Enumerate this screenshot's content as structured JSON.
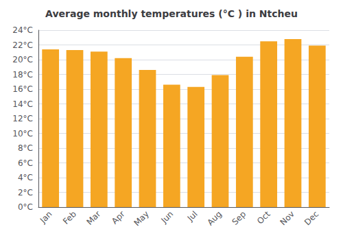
{
  "chart_data": {
    "type": "bar",
    "title": "Average monthly temperatures (°C ) in Ntcheu",
    "categories": [
      "Jan",
      "Feb",
      "Mar",
      "Apr",
      "May",
      "Jun",
      "Jul",
      "Aug",
      "Sep",
      "Oct",
      "Nov",
      "Dec"
    ],
    "values": [
      21.4,
      21.3,
      21.1,
      20.2,
      18.6,
      16.6,
      16.3,
      17.9,
      20.4,
      22.5,
      22.8,
      21.9
    ],
    "color": "#F5A623",
    "ylim": [
      0,
      24
    ],
    "yticks": [
      {
        "value": 0,
        "label": "0°C"
      },
      {
        "value": 2,
        "label": "2°C"
      },
      {
        "value": 4,
        "label": "4°C"
      },
      {
        "value": 6,
        "label": "6°C"
      },
      {
        "value": 8,
        "label": "8°C"
      },
      {
        "value": 10,
        "label": "10°C"
      },
      {
        "value": 12,
        "label": "12°C"
      },
      {
        "value": 14,
        "label": "14°C"
      },
      {
        "value": 16,
        "label": "16°C"
      },
      {
        "value": 18,
        "label": "18°C"
      },
      {
        "value": 20,
        "label": "20°C"
      },
      {
        "value": 22,
        "label": "22°C"
      },
      {
        "value": 24,
        "label": "24°C"
      }
    ],
    "grid": true
  }
}
